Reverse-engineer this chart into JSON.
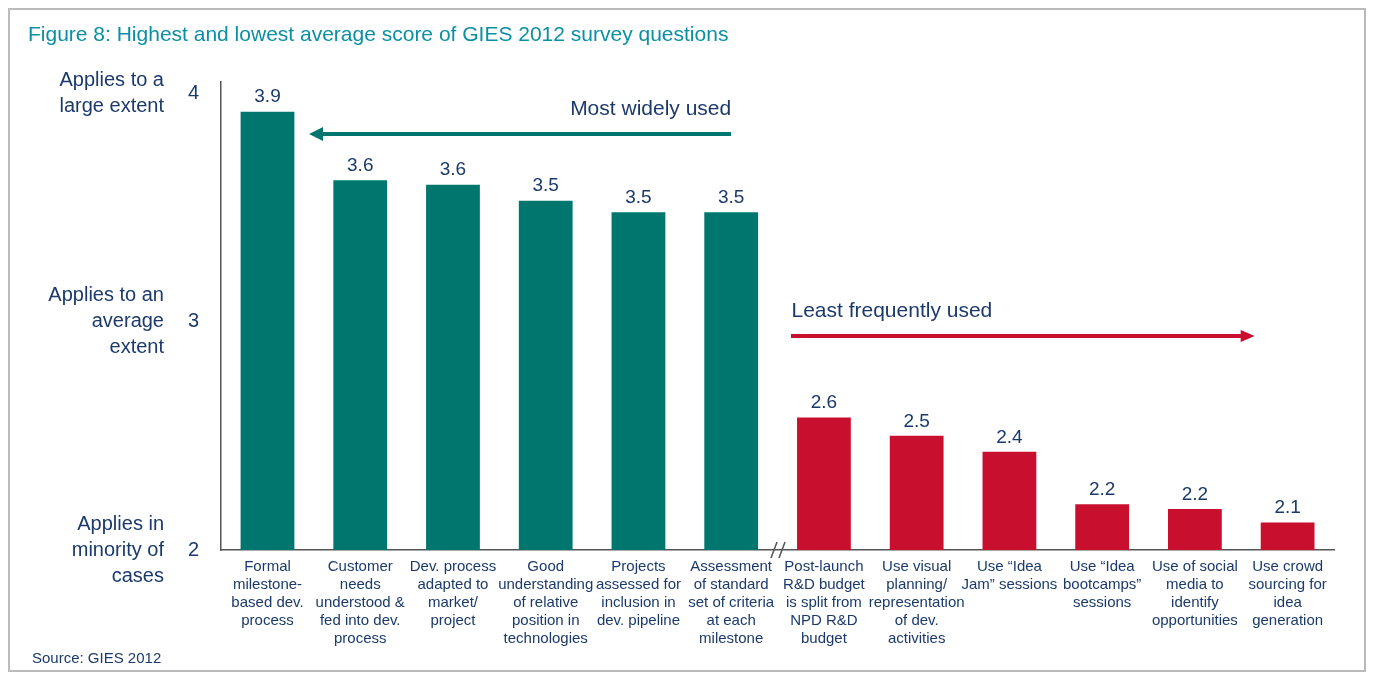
{
  "chart_data": {
    "type": "bar",
    "title": "Figure 8: Highest and lowest average score of GIES 2012 survey questions",
    "categories": [
      "Formal milestone-based dev. process",
      "Customer needs understood & fed into dev. process",
      "Dev. process adapted to market/ project",
      "Good understanding of relative position in technologies",
      "Projects assessed for inclusion in dev. pipeline",
      "Assessment of standard set of criteria at each milestone",
      "Post-launch R&D budget is split from NPD R&D budget",
      "Use visual planning/ representation of dev. activities",
      "Use “Idea Jam” sessions",
      "Use “Idea bootcamps” sessions",
      "Use of social media to identify opportunities",
      "Use crowd sourcing for idea generation"
    ],
    "values": [
      3.92,
      3.62,
      3.6,
      3.53,
      3.48,
      3.48,
      2.58,
      2.5,
      2.43,
      2.2,
      2.18,
      2.12
    ],
    "colors": [
      "#00776e",
      "#00776e",
      "#00776e",
      "#00776e",
      "#00776e",
      "#00776e",
      "#c8102e",
      "#c8102e",
      "#c8102e",
      "#c8102e",
      "#c8102e",
      "#c8102e"
    ],
    "value_labels": [
      "3.9",
      "3.6",
      "3.6",
      "3.5",
      "3.5",
      "3.5",
      "2.6",
      "2.5",
      "2.4",
      "2.2",
      "2.2",
      "2.1"
    ],
    "ylim": [
      2,
      4.05
    ],
    "yticks": [
      2,
      3,
      4
    ],
    "grid": false,
    "annotations": [
      "Most widely used",
      "Least frequently used",
      "Applies in minority of cases",
      "Applies to an average extent",
      "Applies to a large extent",
      "Source: GIES 2012"
    ]
  }
}
